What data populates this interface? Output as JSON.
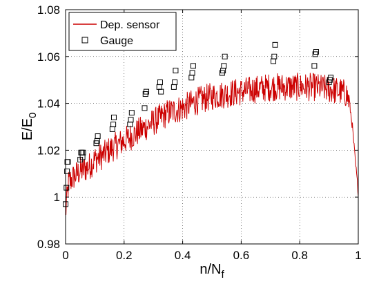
{
  "chart_data": {
    "type": "line",
    "xlabel": "n/N",
    "xlabel_sub": "f",
    "ylabel": "E/E",
    "ylabel_sub": "0",
    "xlim": [
      0,
      1
    ],
    "ylim": [
      0.98,
      1.08
    ],
    "x_ticks": [
      "0",
      "0.2",
      "0.4",
      "0.6",
      "0.8",
      "1"
    ],
    "y_ticks": [
      "0.98",
      "1",
      "1.02",
      "1.04",
      "1.06",
      "1.08"
    ],
    "grid": true,
    "legend_position": "top-left",
    "series": [
      {
        "name": "Dep. sensor",
        "style": "line",
        "color": "#cc0000",
        "trend_x": [
          0.0,
          0.01,
          0.03,
          0.05,
          0.08,
          0.1,
          0.13,
          0.16,
          0.2,
          0.25,
          0.3,
          0.35,
          0.4,
          0.45,
          0.5,
          0.55,
          0.6,
          0.65,
          0.7,
          0.75,
          0.8,
          0.85,
          0.9,
          0.94,
          0.96,
          0.97,
          0.98,
          0.99,
          1.0
        ],
        "trend_y": [
          0.993,
          1.006,
          1.009,
          1.011,
          1.013,
          1.016,
          1.018,
          1.021,
          1.024,
          1.028,
          1.032,
          1.036,
          1.038,
          1.041,
          1.043,
          1.044,
          1.045,
          1.046,
          1.047,
          1.047,
          1.047,
          1.047,
          1.046,
          1.045,
          1.044,
          1.04,
          1.03,
          1.015,
          1.002
        ],
        "noise_amplitude": 0.006
      },
      {
        "name": "Gauge",
        "style": "marker",
        "marker": "square",
        "color": "#000000",
        "points": [
          [
            0.0,
            0.997
          ],
          [
            0.003,
            1.004
          ],
          [
            0.005,
            1.011
          ],
          [
            0.006,
            1.015
          ],
          [
            0.008,
            1.015
          ],
          [
            0.05,
            1.016
          ],
          [
            0.053,
            1.019
          ],
          [
            0.056,
            1.019
          ],
          [
            0.058,
            1.017
          ],
          [
            0.06,
            1.019
          ],
          [
            0.105,
            1.023
          ],
          [
            0.108,
            1.024
          ],
          [
            0.11,
            1.026
          ],
          [
            0.16,
            1.029
          ],
          [
            0.163,
            1.031
          ],
          [
            0.165,
            1.034
          ],
          [
            0.22,
            1.031
          ],
          [
            0.223,
            1.033
          ],
          [
            0.226,
            1.036
          ],
          [
            0.27,
            1.038
          ],
          [
            0.273,
            1.044
          ],
          [
            0.276,
            1.045
          ],
          [
            0.32,
            1.047
          ],
          [
            0.323,
            1.049
          ],
          [
            0.326,
            1.045
          ],
          [
            0.37,
            1.047
          ],
          [
            0.373,
            1.049
          ],
          [
            0.376,
            1.054
          ],
          [
            0.43,
            1.051
          ],
          [
            0.433,
            1.053
          ],
          [
            0.436,
            1.056
          ],
          [
            0.535,
            1.053
          ],
          [
            0.538,
            1.054
          ],
          [
            0.541,
            1.056
          ],
          [
            0.544,
            1.06
          ],
          [
            0.71,
            1.058
          ],
          [
            0.713,
            1.06
          ],
          [
            0.716,
            1.065
          ],
          [
            0.85,
            1.056
          ],
          [
            0.853,
            1.061
          ],
          [
            0.856,
            1.062
          ],
          [
            0.9,
            1.049
          ],
          [
            0.903,
            1.05
          ],
          [
            0.906,
            1.051
          ]
        ]
      }
    ]
  }
}
